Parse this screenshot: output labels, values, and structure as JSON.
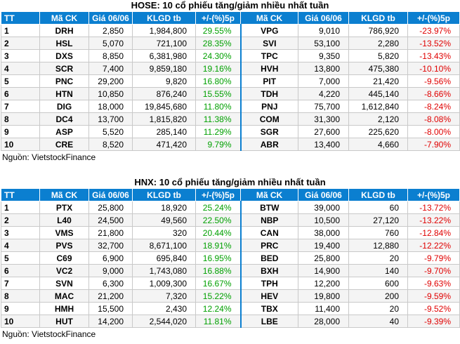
{
  "hose": {
    "title": "HOSE: 10 cổ phiếu tăng/giảm nhiều nhất tuần",
    "headers": [
      "TT",
      "Mã CK",
      "Giá 06/06",
      "KLGD tb",
      "+/-(%)5p",
      "Mã CK",
      "Giá 06/06",
      "KLGD tb",
      "+/-(%)5p"
    ],
    "rows": [
      {
        "tt": "1",
        "up_code": "DRH",
        "up_price": "2,850",
        "up_vol": "1,984,800",
        "up_pct": "29.55%",
        "down_code": "VPG",
        "down_price": "9,010",
        "down_vol": "786,920",
        "down_pct": "-23.97%"
      },
      {
        "tt": "2",
        "up_code": "HSL",
        "up_price": "5,070",
        "up_vol": "721,100",
        "up_pct": "28.35%",
        "down_code": "SVI",
        "down_price": "53,100",
        "down_vol": "2,280",
        "down_pct": "-13.52%"
      },
      {
        "tt": "3",
        "up_code": "DXS",
        "up_price": "8,850",
        "up_vol": "6,381,980",
        "up_pct": "24.30%",
        "down_code": "TPC",
        "down_price": "9,350",
        "down_vol": "5,820",
        "down_pct": "-13.43%"
      },
      {
        "tt": "4",
        "up_code": "SCR",
        "up_price": "7,400",
        "up_vol": "9,859,180",
        "up_pct": "19.16%",
        "down_code": "HVH",
        "down_price": "13,800",
        "down_vol": "475,380",
        "down_pct": "-10.10%"
      },
      {
        "tt": "5",
        "up_code": "PNC",
        "up_price": "29,200",
        "up_vol": "9,820",
        "up_pct": "16.80%",
        "down_code": "PIT",
        "down_price": "7,000",
        "down_vol": "21,420",
        "down_pct": "-9.56%"
      },
      {
        "tt": "6",
        "up_code": "HTN",
        "up_price": "10,850",
        "up_vol": "876,240",
        "up_pct": "15.55%",
        "down_code": "TDH",
        "down_price": "4,220",
        "down_vol": "445,140",
        "down_pct": "-8.66%"
      },
      {
        "tt": "7",
        "up_code": "DIG",
        "up_price": "18,000",
        "up_vol": "19,845,680",
        "up_pct": "11.80%",
        "down_code": "PNJ",
        "down_price": "75,700",
        "down_vol": "1,612,840",
        "down_pct": "-8.24%"
      },
      {
        "tt": "8",
        "up_code": "DC4",
        "up_price": "13,700",
        "up_vol": "1,815,820",
        "up_pct": "11.38%",
        "down_code": "COM",
        "down_price": "31,300",
        "down_vol": "2,120",
        "down_pct": "-8.08%"
      },
      {
        "tt": "9",
        "up_code": "ASP",
        "up_price": "5,520",
        "up_vol": "285,140",
        "up_pct": "11.29%",
        "down_code": "SGR",
        "down_price": "27,600",
        "down_vol": "225,620",
        "down_pct": "-8.00%"
      },
      {
        "tt": "10",
        "up_code": "CRE",
        "up_price": "8,520",
        "up_vol": "471,420",
        "up_pct": "9.79%",
        "down_code": "ABR",
        "down_price": "13,400",
        "down_vol": "4,660",
        "down_pct": "-7.90%"
      }
    ],
    "source": "Nguồn: VietstockFinance"
  },
  "hnx": {
    "title": "HNX: 10 cổ phiếu tăng/giảm nhiều nhất tuần",
    "headers": [
      "TT",
      "Mã CK",
      "Giá 06/06",
      "KLGD tb",
      "+/-(%)5p",
      "Mã CK",
      "Giá 06/06",
      "KLGD tb",
      "+/-(%)5p"
    ],
    "rows": [
      {
        "tt": "1",
        "up_code": "PTX",
        "up_price": "25,800",
        "up_vol": "18,920",
        "up_pct": "25.24%",
        "down_code": "BTW",
        "down_price": "39,000",
        "down_vol": "60",
        "down_pct": "-13.72%"
      },
      {
        "tt": "2",
        "up_code": "L40",
        "up_price": "24,500",
        "up_vol": "49,560",
        "up_pct": "22.50%",
        "down_code": "NBP",
        "down_price": "10,500",
        "down_vol": "27,120",
        "down_pct": "-13.22%"
      },
      {
        "tt": "3",
        "up_code": "VMS",
        "up_price": "21,800",
        "up_vol": "320",
        "up_pct": "20.44%",
        "down_code": "CAN",
        "down_price": "38,000",
        "down_vol": "760",
        "down_pct": "-12.84%"
      },
      {
        "tt": "4",
        "up_code": "PVS",
        "up_price": "32,700",
        "up_vol": "8,671,100",
        "up_pct": "18.91%",
        "down_code": "PRC",
        "down_price": "19,400",
        "down_vol": "12,880",
        "down_pct": "-12.22%"
      },
      {
        "tt": "5",
        "up_code": "C69",
        "up_price": "6,900",
        "up_vol": "695,840",
        "up_pct": "16.95%",
        "down_code": "BED",
        "down_price": "25,800",
        "down_vol": "20",
        "down_pct": "-9.79%"
      },
      {
        "tt": "6",
        "up_code": "VC2",
        "up_price": "9,000",
        "up_vol": "1,743,080",
        "up_pct": "16.88%",
        "down_code": "BXH",
        "down_price": "14,900",
        "down_vol": "140",
        "down_pct": "-9.70%"
      },
      {
        "tt": "7",
        "up_code": "SVN",
        "up_price": "6,300",
        "up_vol": "1,009,300",
        "up_pct": "16.67%",
        "down_code": "TPH",
        "down_price": "12,200",
        "down_vol": "600",
        "down_pct": "-9.63%"
      },
      {
        "tt": "8",
        "up_code": "MAC",
        "up_price": "21,200",
        "up_vol": "7,320",
        "up_pct": "15.22%",
        "down_code": "HEV",
        "down_price": "19,800",
        "down_vol": "200",
        "down_pct": "-9.59%"
      },
      {
        "tt": "9",
        "up_code": "HMH",
        "up_price": "15,500",
        "up_vol": "2,430",
        "up_pct": "12.24%",
        "down_code": "TBX",
        "down_price": "11,400",
        "down_vol": "20",
        "down_pct": "-9.52%"
      },
      {
        "tt": "10",
        "up_code": "HUT",
        "up_price": "14,200",
        "up_vol": "2,544,020",
        "up_pct": "11.81%",
        "down_code": "LBE",
        "down_price": "28,000",
        "down_vol": "40",
        "down_pct": "-9.39%"
      }
    ],
    "source": "Nguồn: VietstockFinance"
  },
  "colors": {
    "header_bg": "#0b7fd0",
    "up_text": "#00a000",
    "down_text": "#e00000"
  }
}
